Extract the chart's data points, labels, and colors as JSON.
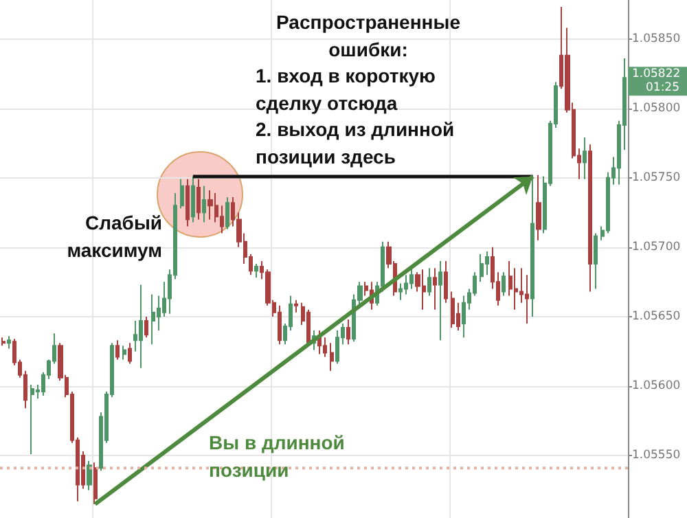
{
  "chart_data": {
    "type": "candlestick",
    "categories": [
      null,
      null,
      null,
      null,
      null,
      null,
      null,
      null,
      null,
      null,
      null,
      null,
      null,
      null,
      null,
      null,
      null,
      null,
      null,
      null,
      null,
      null,
      null,
      null,
      null,
      null,
      null,
      null,
      null,
      null,
      null,
      null,
      null,
      null,
      null,
      null,
      null,
      null,
      null,
      null,
      null,
      null,
      null,
      null,
      null,
      null,
      null,
      null,
      null,
      null,
      null,
      null,
      null,
      null,
      null,
      null,
      null,
      null,
      null,
      null,
      null,
      null,
      null,
      null,
      null,
      null,
      null,
      null,
      null,
      null,
      null,
      null,
      null,
      null,
      null,
      null,
      null,
      null,
      null,
      null,
      null,
      null,
      null,
      null,
      null,
      null,
      null,
      null,
      null,
      null,
      null,
      null,
      null,
      null,
      null,
      null,
      null,
      null,
      null,
      null,
      null,
      null,
      null,
      null,
      null,
      null,
      null,
      null,
      null
    ],
    "ohlc": [
      [
        1.05632,
        1.05635,
        1.05629,
        1.05631
      ],
      [
        1.05631,
        1.05636,
        1.05627,
        1.05633
      ],
      [
        1.05632,
        1.05634,
        1.05615,
        1.05617
      ],
      [
        1.05617,
        1.05619,
        1.05606,
        1.05608
      ],
      [
        1.05608,
        1.05611,
        1.05584,
        1.0559
      ],
      [
        1.05594,
        1.05601,
        1.05551,
        1.05598
      ],
      [
        1.05596,
        1.05601,
        1.05591,
        1.05597
      ],
      [
        1.05596,
        1.0561,
        1.05593,
        1.05608
      ],
      [
        1.05608,
        1.05619,
        1.05605,
        1.05618
      ],
      [
        1.05618,
        1.05638,
        1.05616,
        1.05629
      ],
      [
        1.05629,
        1.05631,
        1.05604,
        1.05606
      ],
      [
        1.05606,
        1.05608,
        1.05592,
        1.05594
      ],
      [
        1.05594,
        1.05596,
        1.05559,
        1.05561
      ],
      [
        1.05561,
        1.05563,
        1.05517,
        1.05529
      ],
      [
        1.0555,
        1.05553,
        1.05526,
        1.05529
      ],
      [
        1.05529,
        1.05546,
        1.05525,
        1.05543
      ],
      [
        1.05541,
        1.05545,
        1.05515,
        1.05519
      ],
      [
        1.05541,
        1.05581,
        1.05539,
        1.05578
      ],
      [
        1.05561,
        1.05596,
        1.05559,
        1.05594
      ],
      [
        1.05594,
        1.05631,
        1.05592,
        1.05629
      ],
      [
        1.05629,
        1.05633,
        1.05619,
        1.05621
      ],
      [
        1.05623,
        1.05629,
        1.05619,
        1.05626
      ],
      [
        1.05627,
        1.05631,
        1.05616,
        1.05618
      ],
      [
        1.05633,
        1.05647,
        1.05625,
        1.05637
      ],
      [
        1.05633,
        1.05673,
        1.05613,
        1.05647
      ],
      [
        1.05647,
        1.0565,
        1.05635,
        1.05637
      ],
      [
        1.05647,
        1.05666,
        1.0563,
        1.05653
      ],
      [
        1.0565,
        1.05665,
        1.0564,
        1.05656
      ],
      [
        1.05653,
        1.05675,
        1.0565,
        1.05663
      ],
      [
        1.05663,
        1.05684,
        1.05652,
        1.0568
      ],
      [
        1.0568,
        1.05739,
        1.05677,
        1.0573
      ],
      [
        1.0573,
        1.05749,
        1.05728,
        1.05744
      ],
      [
        1.05744,
        1.05749,
        1.05715,
        1.0572
      ],
      [
        1.05722,
        1.05751,
        1.05718,
        1.05744
      ],
      [
        1.05743,
        1.05749,
        1.0572,
        1.05725
      ],
      [
        1.05725,
        1.05744,
        1.05718,
        1.05734
      ],
      [
        1.05734,
        1.05741,
        1.0572,
        1.0573
      ],
      [
        1.0573,
        1.05739,
        1.05718,
        1.05722
      ],
      [
        1.05722,
        1.0573,
        1.0571,
        1.05715
      ],
      [
        1.05715,
        1.05736,
        1.05713,
        1.05732
      ],
      [
        1.05732,
        1.05736,
        1.05715,
        1.0572
      ],
      [
        1.0572,
        1.05725,
        1.057,
        1.05704
      ],
      [
        1.05704,
        1.0571,
        1.05688,
        1.05693
      ],
      [
        1.05693,
        1.05695,
        1.0568,
        1.05683
      ],
      [
        1.05683,
        1.05688,
        1.05678,
        1.05686
      ],
      [
        1.05686,
        1.0569,
        1.05677,
        1.05682
      ],
      [
        1.05682,
        1.05684,
        1.05658,
        1.0566
      ],
      [
        1.0566,
        1.05662,
        1.0565,
        1.05653
      ],
      [
        1.05653,
        1.05658,
        1.0563,
        1.05633
      ],
      [
        1.05633,
        1.05645,
        1.0563,
        1.05643
      ],
      [
        1.05643,
        1.05665,
        1.0564,
        1.05659
      ],
      [
        1.05659,
        1.05662,
        1.05653,
        1.05658
      ],
      [
        1.05657,
        1.0566,
        1.05644,
        1.05647
      ],
      [
        1.05653,
        1.05655,
        1.05629,
        1.05631
      ],
      [
        1.05631,
        1.0564,
        1.05626,
        1.05636
      ],
      [
        1.05636,
        1.0564,
        1.05623,
        1.05629
      ],
      [
        1.05629,
        1.05635,
        1.05621,
        1.05624
      ],
      [
        1.05624,
        1.05631,
        1.05611,
        1.05618
      ],
      [
        1.05618,
        1.0564,
        1.05616,
        1.05635
      ],
      [
        1.05635,
        1.05645,
        1.0563,
        1.05642
      ],
      [
        1.05642,
        1.05648,
        1.0563,
        1.05634
      ],
      [
        1.05634,
        1.05666,
        1.05632,
        1.05662
      ],
      [
        1.05662,
        1.05675,
        1.05658,
        1.05672
      ],
      [
        1.05672,
        1.05675,
        1.05665,
        1.05669
      ],
      [
        1.05669,
        1.05675,
        1.05655,
        1.0566
      ],
      [
        1.0566,
        1.05675,
        1.05658,
        1.05672
      ],
      [
        1.05672,
        1.05704,
        1.05668,
        1.057
      ],
      [
        1.057,
        1.05704,
        1.05685,
        1.05688
      ],
      [
        1.05688,
        1.0569,
        1.05665,
        1.05668
      ],
      [
        1.05668,
        1.05674,
        1.05662,
        1.0567
      ],
      [
        1.0567,
        1.0568,
        1.05666,
        1.05674
      ],
      [
        1.05674,
        1.05685,
        1.0567,
        1.0568
      ],
      [
        1.0568,
        1.05682,
        1.05668,
        1.05672
      ],
      [
        1.05672,
        1.05684,
        1.05655,
        1.05668
      ],
      [
        1.05668,
        1.05685,
        1.05665,
        1.05678
      ],
      [
        1.05678,
        1.05685,
        1.05655,
        1.05673
      ],
      [
        1.05673,
        1.0569,
        1.05633,
        1.05682
      ],
      [
        1.05682,
        1.0569,
        1.0566,
        1.05663
      ],
      [
        1.05663,
        1.05668,
        1.05642,
        1.05645
      ],
      [
        1.05652,
        1.0566,
        1.0564,
        1.05643
      ],
      [
        1.05645,
        1.05665,
        1.05635,
        1.0566
      ],
      [
        1.0566,
        1.0567,
        1.05655,
        1.05667
      ],
      [
        1.05667,
        1.05682,
        1.05665,
        1.05679
      ],
      [
        1.05679,
        1.05695,
        1.05675,
        1.05688
      ],
      [
        1.05688,
        1.05697,
        1.0568,
        1.05693
      ],
      [
        1.05693,
        1.057,
        1.0567,
        1.05675
      ],
      [
        1.05675,
        1.05682,
        1.05658,
        1.05662
      ],
      [
        1.05668,
        1.05682,
        1.05665,
        1.05679
      ],
      [
        1.05679,
        1.0569,
        1.05665,
        1.0567
      ],
      [
        1.0567,
        1.05685,
        1.05655,
        1.05668
      ],
      [
        1.05668,
        1.05685,
        1.0566,
        1.05666
      ],
      [
        1.05666,
        1.0568,
        1.05645,
        1.05663
      ],
      [
        1.05663,
        1.05749,
        1.0565,
        1.05717
      ],
      [
        1.05732,
        1.05752,
        1.05705,
        1.05713
      ],
      [
        1.05713,
        1.05751,
        1.0571,
        1.05746
      ],
      [
        1.05746,
        1.05791,
        1.05744,
        1.05789
      ],
      [
        1.05789,
        1.05819,
        1.05786,
        1.05816
      ],
      [
        1.05838,
        1.05873,
        1.05814,
        1.05816
      ],
      [
        1.05838,
        1.05858,
        1.05797,
        1.05799
      ],
      [
        1.05799,
        1.05804,
        1.05764,
        1.05766
      ],
      [
        1.05766,
        1.05771,
        1.05749,
        1.05761
      ],
      [
        1.05761,
        1.05779,
        1.05749,
        1.05769
      ],
      [
        1.05769,
        1.05774,
        1.05668,
        1.05688
      ],
      [
        1.05688,
        1.0571,
        1.0567,
        1.05708
      ],
      [
        1.05708,
        1.05715,
        1.05705,
        1.05712
      ],
      [
        1.05712,
        1.05754,
        1.0571,
        1.0575
      ],
      [
        1.0575,
        1.05765,
        1.05745,
        1.05757
      ],
      [
        1.05757,
        1.05791,
        1.05745,
        1.05788
      ],
      [
        1.05788,
        1.05836,
        1.0577,
        1.05822
      ]
    ],
    "colors": [
      "#a8403f",
      "#4f9467",
      "#a8403f",
      "#a8403f",
      "#a8403f",
      "#4f9467",
      "#4f9467",
      "#4f9467",
      "#4f9467",
      "#4f9467",
      "#a8403f",
      "#a8403f",
      "#a8403f",
      "#a8403f",
      "#a8403f",
      "#4f9467",
      "#a8403f",
      "#4f9467",
      "#4f9467",
      "#4f9467",
      "#a8403f",
      "#4f9467",
      "#a8403f",
      "#4f9467",
      "#4f9467",
      "#a8403f",
      "#4f9467",
      "#4f9467",
      "#4f9467",
      "#4f9467",
      "#4f9467",
      "#4f9467",
      "#a8403f",
      "#4f9467",
      "#a8403f",
      "#4f9467",
      "#a8403f",
      "#a8403f",
      "#a8403f",
      "#4f9467",
      "#a8403f",
      "#a8403f",
      "#a8403f",
      "#a8403f",
      "#4f9467",
      "#a8403f",
      "#a8403f",
      "#a8403f",
      "#a8403f",
      "#4f9467",
      "#4f9467",
      "#a8403f",
      "#a8403f",
      "#a8403f",
      "#4f9467",
      "#a8403f",
      "#a8403f",
      "#a8403f",
      "#4f9467",
      "#4f9467",
      "#a8403f",
      "#4f9467",
      "#4f9467",
      "#a8403f",
      "#a8403f",
      "#4f9467",
      "#4f9467",
      "#a8403f",
      "#a8403f",
      "#4f9467",
      "#4f9467",
      "#4f9467",
      "#a8403f",
      "#a8403f",
      "#4f9467",
      "#a8403f",
      "#4f9467",
      "#a8403f",
      "#a8403f",
      "#a8403f",
      "#4f9467",
      "#4f9467",
      "#4f9467",
      "#4f9467",
      "#4f9467",
      "#a8403f",
      "#a8403f",
      "#4f9467",
      "#a8403f",
      "#a8403f",
      "#a8403f",
      "#a8403f",
      "#4f9467",
      "#a8403f",
      "#4f9467",
      "#4f9467",
      "#4f9467",
      "#a8403f",
      "#a8403f",
      "#a8403f",
      "#a8403f",
      "#4f9467",
      "#a8403f",
      "#4f9467",
      "#4f9467",
      "#4f9467",
      "#4f9467",
      "#4f9467",
      "#4f9467"
    ],
    "ylim": [
      1.05505,
      1.05878
    ],
    "yticks": [
      {
        "value": 1.0555,
        "label": "1.05550"
      },
      {
        "value": 1.056,
        "label": "1.05600"
      },
      {
        "value": 1.0565,
        "label": "1.05650"
      },
      {
        "value": 1.057,
        "label": "1.05700"
      },
      {
        "value": 1.0575,
        "label": "1.05750"
      },
      {
        "value": 1.058,
        "label": "1.05800"
      },
      {
        "value": 1.0585,
        "label": "1.05850"
      }
    ],
    "grid": true,
    "tick_labels": "y",
    "ref_lines": [
      {
        "axis": "y",
        "value": 1.05541,
        "color": "#e3b2a4",
        "line_style": "dotted"
      }
    ],
    "annotations": [
      "Слабый максимум",
      "Распространенные ошибки:",
      "1. вход в короткую сделку отсюда",
      "2. выход из длинной позиции здесь",
      "Вы в длинной позиции",
      "1.05822",
      "01:25"
    ]
  }
}
